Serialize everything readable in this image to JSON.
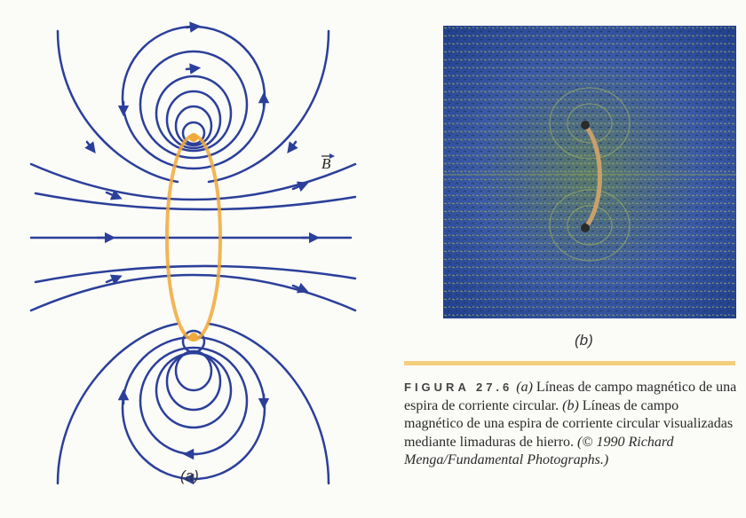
{
  "panel_a": {
    "label": "(a)",
    "field_symbol": "B",
    "colors": {
      "field_lines": "#2b3f9a",
      "loop": "#f0a93a"
    }
  },
  "panel_b": {
    "label": "(b)",
    "photo_colors": {
      "background": "#2f4f9e",
      "filings": "#8fa23e",
      "wire": "#c9a06a"
    }
  },
  "caption": {
    "figure_number": "FIGURA 27.6",
    "part_a_marker": "(a)",
    "part_a_text": " Líneas de campo magnético de una espira de corriente circular.",
    "part_b_marker": "(b)",
    "part_b_text": " Líneas de campo magnético de una espira de corriente circular visualizadas mediante limaduras de hierro.",
    "credit": "(© 1990 Richard Menga/Fundamental Photographs.)"
  },
  "rule_color": "#f3cf7d"
}
